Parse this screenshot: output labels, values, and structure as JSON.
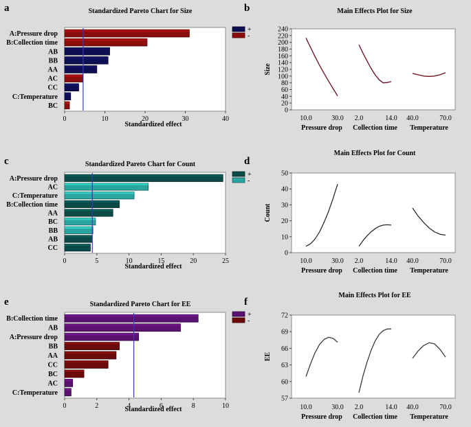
{
  "figure": {
    "panels": [
      {
        "letter": "a",
        "chart_index": 0
      },
      {
        "letter": "b",
        "chart_index": 1
      },
      {
        "letter": "c",
        "chart_index": 2
      },
      {
        "letter": "d",
        "chart_index": 3
      },
      {
        "letter": "e",
        "chart_index": 4
      },
      {
        "letter": "f",
        "chart_index": 5
      }
    ]
  },
  "chart_data": [
    {
      "type": "bar",
      "orientation": "horizontal",
      "title": "Standardized Pareto Chart for Size",
      "xlabel": "Standardized effect",
      "xlim": [
        0,
        40
      ],
      "xticks": [
        0,
        10,
        20,
        30,
        40
      ],
      "categories": [
        "A:Pressure drop",
        "B:Collection time",
        "AB",
        "BB",
        "AA",
        "AC",
        "CC",
        "C:Temperature",
        "BC"
      ],
      "values": [
        31,
        20.5,
        11.2,
        10.8,
        8.0,
        4.5,
        3.5,
        1.5,
        1.2
      ],
      "signs": [
        "-",
        "-",
        "+",
        "+",
        "+",
        "-",
        "+",
        "+",
        "-"
      ],
      "threshold": 4.6,
      "legend": [
        {
          "label": "+",
          "color": "#0e0f52"
        },
        {
          "label": "-",
          "color": "#8b0d0d"
        }
      ]
    },
    {
      "type": "line",
      "title": "Main Effects Plot for Size",
      "ylabel": "Size",
      "ylim": [
        0,
        240
      ],
      "yticks": [
        0,
        20,
        40,
        60,
        80,
        100,
        120,
        140,
        160,
        180,
        200,
        220,
        240
      ],
      "factors": [
        {
          "name": "Pressure drop",
          "low": "10.0",
          "high": "30.0",
          "y": [
            213,
            185,
            158,
            132,
            108,
            85,
            63,
            41
          ]
        },
        {
          "name": "Collection time",
          "low": "2.0",
          "high": "14.0",
          "y": [
            193,
            168,
            145,
            123,
            104,
            89,
            80,
            81,
            84
          ]
        },
        {
          "name": "Temperature",
          "low": "40.0",
          "high": "70.0",
          "y": [
            108,
            104,
            100,
            99,
            100,
            104,
            110
          ]
        }
      ],
      "line_color": "#6b0a1a"
    },
    {
      "type": "bar",
      "orientation": "horizontal",
      "title": "Standardized Pareto Chart for Count",
      "xlabel": "Standardized effect",
      "xlim": [
        0,
        25
      ],
      "xticks": [
        0,
        5,
        10,
        15,
        20,
        25
      ],
      "categories": [
        "A:Pressure drop",
        "AC",
        "C:Temperature",
        "B:Collection time",
        "AA",
        "BC",
        "BB",
        "AB",
        "CC"
      ],
      "values": [
        24.6,
        13,
        10.8,
        8.5,
        7.5,
        4.8,
        4.4,
        4.2,
        4.0
      ],
      "signs": [
        "+",
        "-",
        "-",
        "+",
        "+",
        "-",
        "-",
        "+",
        "+"
      ],
      "threshold": 4.3,
      "legend": [
        {
          "label": "+",
          "color": "#0c4a48"
        },
        {
          "label": "-",
          "color": "#2aa6a0"
        }
      ]
    },
    {
      "type": "line",
      "title": "Main Effects Plot for Count",
      "ylabel": "Count",
      "ylim": [
        0,
        50
      ],
      "yticks": [
        0,
        10,
        20,
        30,
        40,
        50
      ],
      "factors": [
        {
          "name": "Pressure drop",
          "low": "10.0",
          "high": "30.0",
          "y": [
            4,
            5.5,
            8.5,
            13,
            19,
            26,
            34,
            43
          ]
        },
        {
          "name": "Collection time",
          "low": "2.0",
          "high": "14.0",
          "y": [
            4,
            7.5,
            10.5,
            13,
            15,
            16.5,
            17.3,
            17.5,
            17.3
          ]
        },
        {
          "name": "Temperature",
          "low": "40.0",
          "high": "70.0",
          "y": [
            28,
            23,
            19,
            15.5,
            13,
            11.5,
            11
          ]
        }
      ],
      "line_color": "#2b2b2b"
    },
    {
      "type": "bar",
      "orientation": "horizontal",
      "title": "Standardized Pareto Chart for EE",
      "xlabel": "Standardized effect",
      "xlim": [
        0,
        10
      ],
      "xticks": [
        0,
        2,
        4,
        6,
        8,
        10
      ],
      "categories": [
        "B:Collection time",
        "AB",
        "A:Pressure drop",
        "BB",
        "AA",
        "CC",
        "BC",
        "AC",
        "C:Temperature"
      ],
      "values": [
        8.3,
        7.2,
        4.6,
        3.4,
        3.2,
        2.7,
        1.2,
        0.5,
        0.4
      ],
      "signs": [
        "+",
        "+",
        "+",
        "-",
        "-",
        "-",
        "-",
        "+",
        "+"
      ],
      "threshold": 4.3,
      "legend": [
        {
          "label": "+",
          "color": "#5a1170"
        },
        {
          "label": "-",
          "color": "#6b0a0a"
        }
      ]
    },
    {
      "type": "line",
      "title": "Main Effects Plot for EE",
      "ylabel": "EE",
      "ylim": [
        57,
        72
      ],
      "yticks": [
        57,
        60,
        63,
        66,
        69,
        72
      ],
      "factors": [
        {
          "name": "Pressure drop",
          "low": "10.0",
          "high": "30.0",
          "y": [
            60.9,
            63.2,
            65.2,
            66.7,
            67.6,
            68.0,
            67.8,
            67.1
          ]
        },
        {
          "name": "Collection time",
          "low": "2.0",
          "high": "14.0",
          "y": [
            58.0,
            61.0,
            63.5,
            65.6,
            67.3,
            68.5,
            69.2,
            69.5,
            69.5
          ]
        },
        {
          "name": "Temperature",
          "low": "40.0",
          "high": "70.0",
          "y": [
            64.2,
            65.5,
            66.5,
            67.0,
            66.8,
            65.8,
            64.4
          ]
        }
      ],
      "line_color": "#3a3a3a"
    }
  ]
}
